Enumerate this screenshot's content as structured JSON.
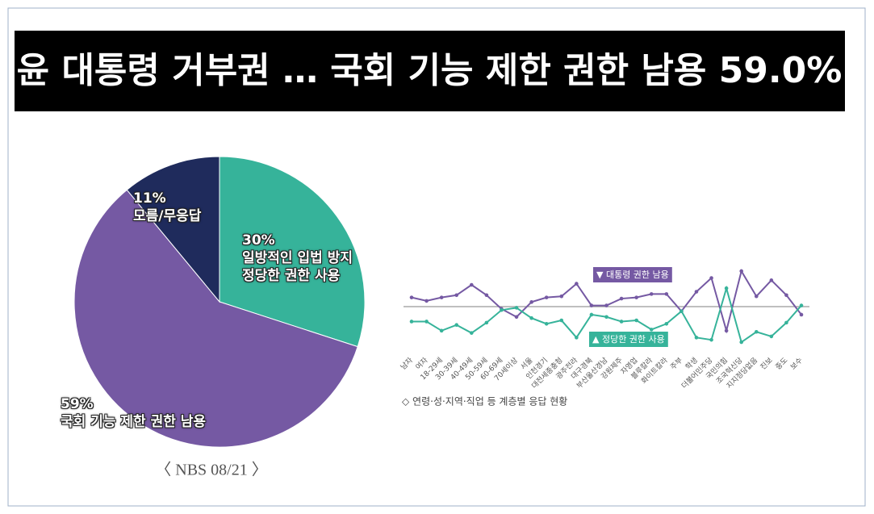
{
  "chart_data": [
    {
      "type": "pie",
      "title": "윤 대통령 거부권 … 국회 기능 제한 권한 남용 59.0%",
      "source": "〈 NBS 08/21 〉",
      "categories": [
        "일방적인 입법 방지\n정당한 권한 사용",
        "국회 기능 제한 권한 남용",
        "모름/무응답"
      ],
      "values": [
        30,
        59,
        11
      ],
      "value_labels": [
        "30%",
        "59%",
        "11%"
      ],
      "colors": [
        "#36b39a",
        "#7559a3",
        "#1f2b5c"
      ]
    },
    {
      "type": "line",
      "note": "◇ 연령·성·지역·직업 등 계층별 응답 현황",
      "categories": [
        "남자",
        "여자",
        "18-29세",
        "30-39세",
        "40-49세",
        "50-59세",
        "60-69세",
        "70세이상",
        "서울",
        "인천경기",
        "대전세종충청",
        "광주전라",
        "대구경북",
        "부산울산경남",
        "강원제주",
        "자영업",
        "블루칼라",
        "화이트칼라",
        "주부",
        "학생",
        "더불어민주당",
        "국민의힘",
        "조국혁신당",
        "지지정당없음",
        "진보",
        "중도",
        "보수"
      ],
      "series": [
        {
          "name": "▼ 대통령 권한 남용",
          "color": "#7559a3",
          "values": [
            58,
            55,
            58,
            60,
            69,
            60,
            48,
            41,
            54,
            58,
            59,
            70,
            51,
            51,
            57,
            58,
            61,
            61,
            46,
            63,
            75,
            29,
            81,
            59,
            73,
            60,
            43
          ]
        },
        {
          "name": "▲ 정당한 권한 사용",
          "color": "#36b39a",
          "values": [
            37,
            37,
            29,
            34,
            27,
            36,
            47,
            49,
            40,
            35,
            38,
            23,
            43,
            41,
            37,
            38,
            30,
            35,
            46,
            23,
            21,
            66,
            19,
            28,
            24,
            36,
            51
          ]
        }
      ],
      "ylim": [
        0,
        100
      ],
      "hline": 50
    }
  ]
}
